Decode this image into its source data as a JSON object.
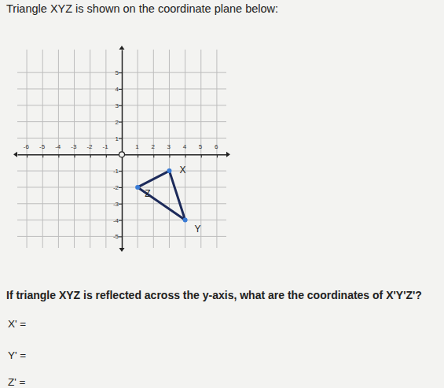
{
  "prompt": "Triangle XYZ is shown on the coordinate plane below:",
  "chart_data": {
    "type": "polygon",
    "x": [
      3,
      4,
      1
    ],
    "values": [
      -1,
      -4,
      -2
    ],
    "point_labels": [
      "X",
      "Y",
      "Z"
    ],
    "color": "#1c2a5a",
    "marker": "circle",
    "xlim": [
      -6.6,
      6.6
    ],
    "ylim": [
      -5.7,
      6.4
    ],
    "xticks": [
      -6,
      -5,
      -4,
      -3,
      -2,
      -1,
      1,
      2,
      3,
      4,
      5,
      6
    ],
    "yticks": [
      -5,
      -4,
      -3,
      -2,
      -1,
      1,
      2,
      3,
      4,
      5
    ],
    "grid": true
  },
  "question": "If triangle XYZ is reflected across the y-axis, what are the coordinates of X'Y'Z'?",
  "answer_labels": [
    "X' =",
    "Y' =",
    "Z' ="
  ]
}
